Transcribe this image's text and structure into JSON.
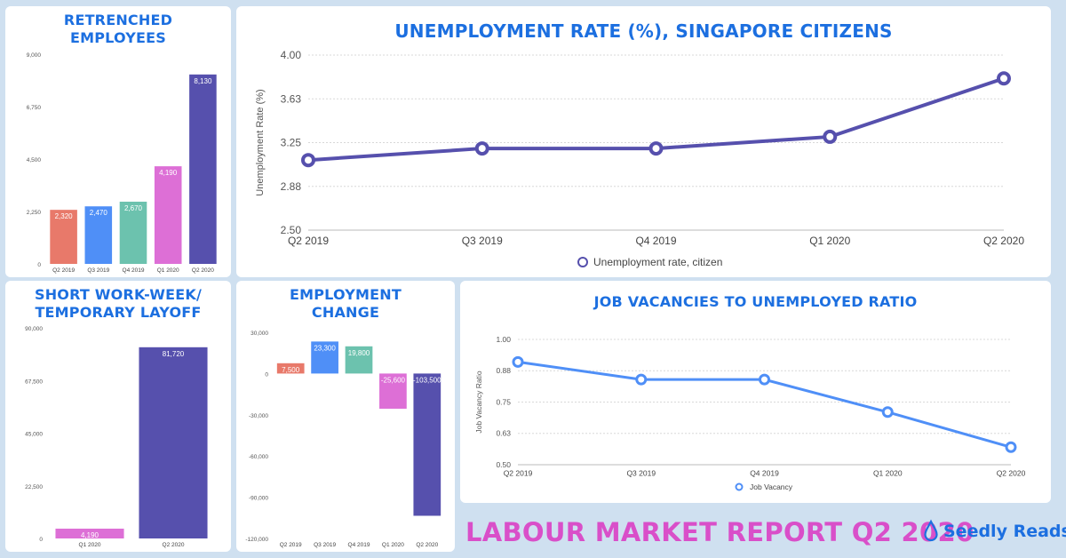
{
  "charts": {
    "retrenched": {
      "title_line1": "RETRENCHED",
      "title_line2": "EMPLOYEES"
    },
    "unemployment": {
      "title": "UNEMPLOYMENT RATE (%), SINGAPORE CITIZENS",
      "ylabel": "Unemployment Rate (%)",
      "legend": "Unemployment rate, citizen"
    },
    "shortweek": {
      "title_line1": "SHORT WORK-WEEK/",
      "title_line2": "TEMPORARY LAYOFF"
    },
    "employment": {
      "title_line1": "EMPLOYMENT",
      "title_line2": "CHANGE"
    },
    "vacancies": {
      "title": "JOB VACANCIES TO UNEMPLOYED RATIO",
      "ylabel": "Job Vacancy Ratio",
      "legend": "Job Vacancy"
    }
  },
  "footer": {
    "title": "LABOUR MARKET REPORT Q2 2020",
    "brand": "Seedly Reads"
  },
  "colors": {
    "background": "#cfe0f0",
    "title_blue": "#1c6fe0",
    "footer_pink": "#d94fc9",
    "bar_q2_2019": "#e8796a",
    "bar_q3_2019": "#4f8ff7",
    "bar_q4_2019": "#6cc2ae",
    "bar_q1_2020": "#dd6fd6",
    "bar_q2_2020": "#5650ad",
    "line_unemployment": "#5650ad",
    "line_vacancy": "#4f8ff7"
  },
  "chart_data": [
    {
      "id": "retrenched",
      "type": "bar",
      "title": "RETRENCHED EMPLOYEES",
      "categories": [
        "Q2 2019",
        "Q3 2019",
        "Q4 2019",
        "Q1 2020",
        "Q2 2020"
      ],
      "values": [
        2320,
        2470,
        2670,
        4190,
        8130
      ],
      "value_labels": [
        "2,320",
        "2,470",
        "2,670",
        "4,190",
        "8,130"
      ],
      "yticks": [
        0,
        2250,
        4500,
        6750,
        9000
      ],
      "ytick_labels": [
        "0",
        "2,250",
        "4,500",
        "6,750",
        "9,000"
      ],
      "ylim": [
        0,
        9000
      ],
      "grid": false
    },
    {
      "id": "unemployment",
      "type": "line",
      "title": "UNEMPLOYMENT RATE (%), SINGAPORE CITIZENS",
      "categories": [
        "Q2 2019",
        "Q3 2019",
        "Q4 2019",
        "Q1 2020",
        "Q2 2020"
      ],
      "series": [
        {
          "name": "Unemployment rate, citizen",
          "values": [
            3.1,
            3.2,
            3.2,
            3.3,
            3.8
          ]
        }
      ],
      "yticks": [
        2.5,
        2.875,
        3.25,
        3.625,
        4.0
      ],
      "ytick_labels": [
        "2.50",
        "2.88",
        "3.25",
        "3.63",
        "4.00"
      ],
      "ylim": [
        2.5,
        4.0
      ],
      "ylabel": "Unemployment Rate (%)",
      "grid": true,
      "legend": "bottom"
    },
    {
      "id": "shortweek",
      "type": "bar",
      "title": "SHORT WORK-WEEK/ TEMPORARY LAYOFF",
      "categories": [
        "Q1 2020",
        "Q2 2020"
      ],
      "values": [
        4190,
        81720
      ],
      "value_labels": [
        "4,190",
        "81,720"
      ],
      "yticks": [
        0,
        22500,
        45000,
        67500,
        90000
      ],
      "ytick_labels": [
        "0",
        "22,500",
        "45,000",
        "67,500",
        "90,000"
      ],
      "ylim": [
        0,
        90000
      ],
      "grid": false
    },
    {
      "id": "employment",
      "type": "bar",
      "title": "EMPLOYMENT CHANGE",
      "categories": [
        "Q2 2019",
        "Q3 2019",
        "Q4 2019",
        "Q1 2020",
        "Q2 2020"
      ],
      "values": [
        7500,
        23300,
        19800,
        -25600,
        -103500
      ],
      "value_labels": [
        "7,500",
        "23,300",
        "19,800",
        "-25,600",
        "-103,500"
      ],
      "yticks": [
        -120000,
        -90000,
        -60000,
        -30000,
        0,
        30000
      ],
      "ytick_labels": [
        "-120,000",
        "-90,000",
        "-60,000",
        "-30,000",
        "0",
        "30,000"
      ],
      "ylim": [
        -120000,
        30000
      ],
      "grid": false
    },
    {
      "id": "vacancies",
      "type": "line",
      "title": "JOB VACANCIES TO UNEMPLOYED RATIO",
      "categories": [
        "Q2 2019",
        "Q3 2019",
        "Q4 2019",
        "Q1 2020",
        "Q2 2020"
      ],
      "series": [
        {
          "name": "Job Vacancy",
          "values": [
            0.91,
            0.84,
            0.84,
            0.71,
            0.57
          ]
        }
      ],
      "yticks": [
        0.5,
        0.625,
        0.75,
        0.875,
        1.0
      ],
      "ytick_labels": [
        "0.50",
        "0.63",
        "0.75",
        "0.88",
        "1.00"
      ],
      "ylim": [
        0.5,
        1.0
      ],
      "ylabel": "Job Vacancy Ratio",
      "grid": true,
      "legend": "bottom"
    }
  ]
}
